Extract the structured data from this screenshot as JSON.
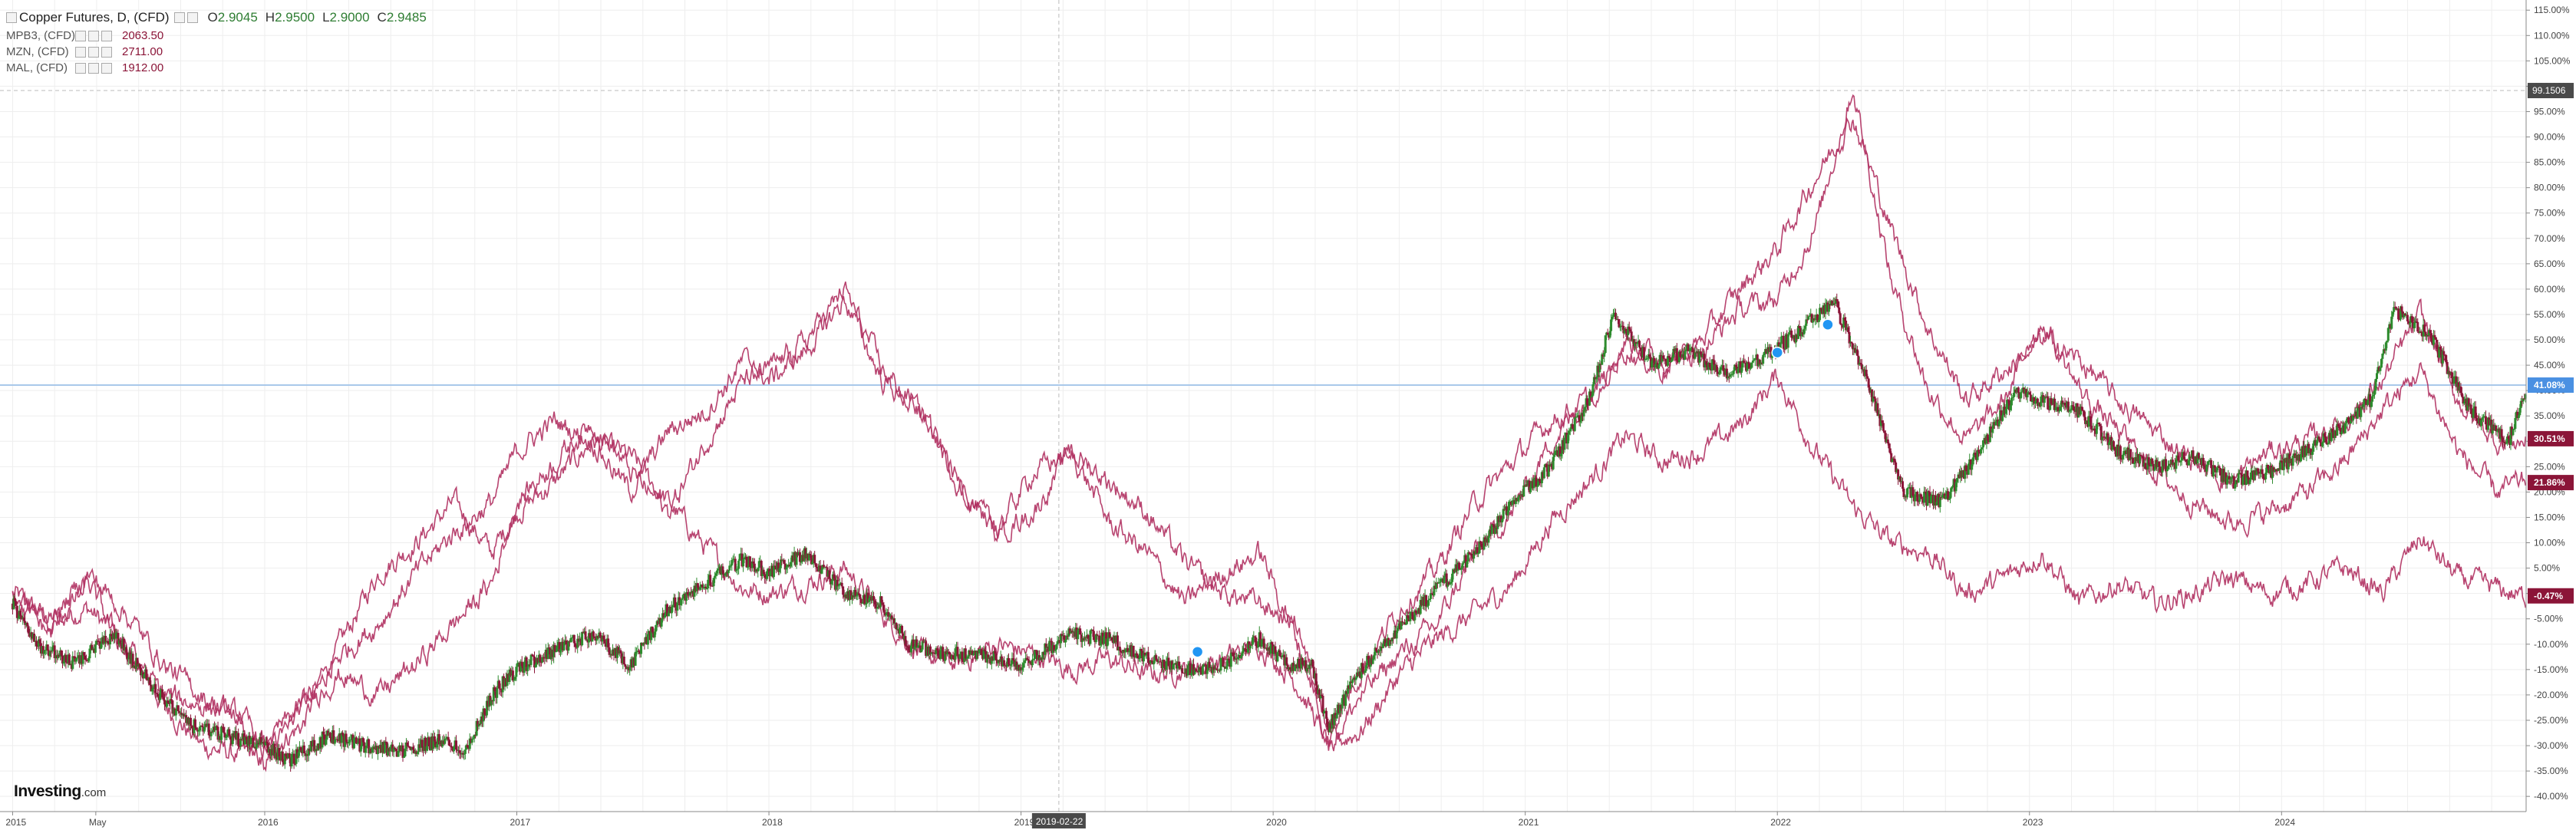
{
  "legend": {
    "main": {
      "symbol": "Copper Futures, D, (CFD)",
      "o_label": "O",
      "o": "2.9045",
      "h_label": "H",
      "h": "2.9500",
      "l_label": "L",
      "l": "2.9000",
      "c_label": "C",
      "c": "2.9485"
    },
    "comparisons": [
      {
        "symbol": "MPB3, (CFD)",
        "value": "2063.50"
      },
      {
        "symbol": "MZN, (CFD)",
        "value": "2711.00"
      },
      {
        "symbol": "MAL, (CFD)",
        "value": "1912.00"
      }
    ]
  },
  "crosshair": {
    "date_label": "2019-02-22",
    "price_label": "99.1506"
  },
  "badges": [
    {
      "text": "41.08%",
      "value": 41.08,
      "color": "#4a90e2"
    },
    {
      "text": "30.51%",
      "value": 30.51,
      "color": "#8b1538"
    },
    {
      "text": "21.86%",
      "value": 21.86,
      "color": "#8b1538"
    },
    {
      "text": "-0.47%",
      "value": -0.47,
      "color": "#8b1538"
    }
  ],
  "watermark": {
    "brand": "Investing",
    "suffix": ".com"
  },
  "colors": {
    "up": "#2e8b2e",
    "down": "#8b1538",
    "compare": "#b03060",
    "hline": "#a9c8ea",
    "grid": "#eeeeee"
  },
  "chart_data": {
    "type": "line",
    "y_unit": "%",
    "ylim": [
      -43,
      117
    ],
    "y_ticks": [
      115,
      110,
      105,
      100,
      95,
      90,
      85,
      80,
      75,
      70,
      65,
      60,
      55,
      50,
      45,
      40,
      35,
      30,
      25,
      20,
      15,
      10,
      5,
      0,
      -5,
      -10,
      -15,
      -20,
      -25,
      -30,
      -35,
      -40
    ],
    "x_ticks": [
      "2015",
      "May",
      "2016",
      "2017",
      "2018",
      "2019",
      "2020",
      "2021",
      "2022",
      "2023",
      "2024"
    ],
    "x_tick_dates": [
      2015.0,
      2015.33,
      2016.0,
      2017.0,
      2018.0,
      2019.0,
      2020.0,
      2021.0,
      2022.0,
      2023.0,
      2024.0
    ],
    "xlim": [
      2014.95,
      2024.97
    ],
    "horizontal_line": 41.08,
    "grid": true,
    "series": [
      {
        "name": "Copper Futures, D, (CFD)",
        "style": "candles",
        "x": [
          2015.0,
          2015.1,
          2015.25,
          2015.4,
          2015.55,
          2015.7,
          2015.85,
          2016.0,
          2016.1,
          2016.25,
          2016.4,
          2016.55,
          2016.7,
          2016.8,
          2016.9,
          2017.0,
          2017.15,
          2017.3,
          2017.45,
          2017.6,
          2017.75,
          2017.9,
          2018.0,
          2018.15,
          2018.3,
          2018.45,
          2018.55,
          2018.7,
          2018.85,
          2019.0,
          2019.2,
          2019.35,
          2019.5,
          2019.65,
          2019.8,
          2019.95,
          2020.05,
          2020.15,
          2020.22,
          2020.35,
          2020.5,
          2020.65,
          2020.8,
          2020.95,
          2021.1,
          2021.25,
          2021.35,
          2021.5,
          2021.65,
          2021.8,
          2021.95,
          2022.1,
          2022.22,
          2022.35,
          2022.5,
          2022.65,
          2022.8,
          2022.95,
          2023.05,
          2023.2,
          2023.35,
          2023.5,
          2023.65,
          2023.8,
          2023.95,
          2024.1,
          2024.25,
          2024.35,
          2024.45,
          2024.6,
          2024.75,
          2024.9,
          2024.97
        ],
        "values": [
          -2,
          -10,
          -14,
          -8,
          -18,
          -26,
          -28,
          -30,
          -33,
          -28,
          -30,
          -31,
          -29,
          -31,
          -20,
          -15,
          -11,
          -8,
          -14,
          -3,
          2,
          7,
          4,
          8,
          0,
          -2,
          -10,
          -12,
          -12,
          -14,
          -8,
          -9,
          -13,
          -15,
          -14,
          -9,
          -14,
          -14,
          -26,
          -15,
          -7,
          1,
          8,
          18,
          25,
          38,
          55,
          45,
          48,
          43,
          47,
          52,
          58,
          43,
          20,
          18,
          28,
          40,
          38,
          36,
          28,
          25,
          27,
          22,
          24,
          28,
          33,
          38,
          56,
          50,
          36,
          30,
          41
        ]
      },
      {
        "name": "MPB3, (CFD)",
        "style": "line",
        "x": [
          2015.0,
          2015.15,
          2015.3,
          2015.45,
          2015.6,
          2015.75,
          2015.9,
          2016.0,
          2016.15,
          2016.3,
          2016.45,
          2016.6,
          2016.75,
          2016.9,
          2017.0,
          2017.15,
          2017.3,
          2017.45,
          2017.6,
          2017.75,
          2017.9,
          2018.0,
          2018.15,
          2018.3,
          2018.45,
          2018.6,
          2018.75,
          2018.9,
          2019.05,
          2019.2,
          2019.35,
          2019.5,
          2019.65,
          2019.8,
          2019.95,
          2020.1,
          2020.22,
          2020.35,
          2020.5,
          2020.65,
          2020.8,
          2020.95,
          2021.1,
          2021.25,
          2021.4,
          2021.55,
          2021.7,
          2021.85,
          2022.0,
          2022.15,
          2022.3,
          2022.45,
          2022.6,
          2022.75,
          2022.9,
          2023.05,
          2023.2,
          2023.35,
          2023.5,
          2023.65,
          2023.8,
          2023.95,
          2024.1,
          2024.25,
          2024.4,
          2024.55,
          2024.7,
          2024.85,
          2024.97
        ],
        "values": [
          0,
          -5,
          -3,
          -10,
          -22,
          -30,
          -32,
          -31,
          -26,
          -10,
          4,
          10,
          18,
          8,
          16,
          22,
          30,
          27,
          18,
          9,
          1,
          0,
          2,
          5,
          -4,
          -12,
          -14,
          -10,
          -12,
          -15,
          -13,
          -16,
          -15,
          -13,
          -10,
          -18,
          -30,
          -27,
          -16,
          -9,
          -4,
          2,
          14,
          22,
          31,
          26,
          28,
          33,
          43,
          28,
          17,
          10,
          8,
          0,
          3,
          8,
          -2,
          2,
          -2,
          0,
          3,
          0,
          2,
          5,
          0,
          11,
          3,
          1,
          -1
        ]
      },
      {
        "name": "MZN, (CFD)",
        "style": "line",
        "x": [
          2015.0,
          2015.15,
          2015.3,
          2015.45,
          2015.6,
          2015.75,
          2015.9,
          2016.0,
          2016.15,
          2016.3,
          2016.45,
          2016.6,
          2016.75,
          2016.9,
          2017.0,
          2017.15,
          2017.3,
          2017.45,
          2017.6,
          2017.75,
          2017.9,
          2018.0,
          2018.15,
          2018.3,
          2018.45,
          2018.6,
          2018.75,
          2018.9,
          2019.05,
          2019.2,
          2019.35,
          2019.5,
          2019.65,
          2019.8,
          2019.95,
          2020.1,
          2020.22,
          2020.35,
          2020.5,
          2020.65,
          2020.8,
          2020.95,
          2021.1,
          2021.25,
          2021.4,
          2021.55,
          2021.7,
          2021.85,
          2022.0,
          2022.15,
          2022.3,
          2022.45,
          2022.6,
          2022.75,
          2022.9,
          2023.05,
          2023.2,
          2023.35,
          2023.5,
          2023.65,
          2023.8,
          2023.95,
          2024.1,
          2024.25,
          2024.4,
          2024.55,
          2024.7,
          2024.85,
          2024.97
        ],
        "values": [
          -1,
          -8,
          2,
          -12,
          -20,
          -22,
          -24,
          -30,
          -22,
          -12,
          -6,
          4,
          12,
          18,
          28,
          34,
          30,
          20,
          32,
          36,
          46,
          42,
          48,
          58,
          42,
          36,
          22,
          12,
          24,
          28,
          14,
          8,
          -2,
          4,
          8,
          -10,
          -27,
          -15,
          -3,
          5,
          18,
          26,
          34,
          38,
          48,
          44,
          50,
          60,
          68,
          82,
          94,
          72,
          52,
          38,
          44,
          50,
          46,
          38,
          32,
          26,
          22,
          28,
          30,
          34,
          42,
          55,
          38,
          30,
          30
        ]
      },
      {
        "name": "MAL, (CFD)",
        "style": "line",
        "x": [
          2015.0,
          2015.15,
          2015.3,
          2015.45,
          2015.6,
          2015.75,
          2015.9,
          2016.0,
          2016.15,
          2016.3,
          2016.45,
          2016.6,
          2016.75,
          2016.9,
          2017.0,
          2017.15,
          2017.3,
          2017.45,
          2017.6,
          2017.75,
          2017.9,
          2018.0,
          2018.15,
          2018.3,
          2018.45,
          2018.6,
          2018.75,
          2018.9,
          2019.05,
          2019.2,
          2019.35,
          2019.5,
          2019.65,
          2019.8,
          2019.95,
          2020.1,
          2020.22,
          2020.35,
          2020.5,
          2020.65,
          2020.8,
          2020.95,
          2021.1,
          2021.25,
          2021.4,
          2021.55,
          2021.7,
          2021.85,
          2022.0,
          2022.15,
          2022.3,
          2022.45,
          2022.6,
          2022.75,
          2022.9,
          2023.05,
          2023.2,
          2023.35,
          2023.5,
          2023.65,
          2023.8,
          2023.95,
          2024.1,
          2024.25,
          2024.4,
          2024.55,
          2024.7,
          2024.85,
          2024.97
        ],
        "values": [
          0,
          -6,
          4,
          -4,
          -14,
          -20,
          -25,
          -34,
          -22,
          -16,
          -20,
          -14,
          -6,
          2,
          18,
          26,
          34,
          24,
          16,
          30,
          42,
          44,
          50,
          60,
          44,
          36,
          22,
          12,
          16,
          28,
          22,
          16,
          6,
          0,
          -2,
          -6,
          -30,
          -20,
          -12,
          -6,
          8,
          16,
          30,
          38,
          50,
          46,
          48,
          56,
          58,
          72,
          100,
          62,
          40,
          30,
          38,
          54,
          40,
          32,
          24,
          18,
          14,
          16,
          20,
          26,
          36,
          44,
          28,
          20,
          22
        ]
      }
    ]
  }
}
